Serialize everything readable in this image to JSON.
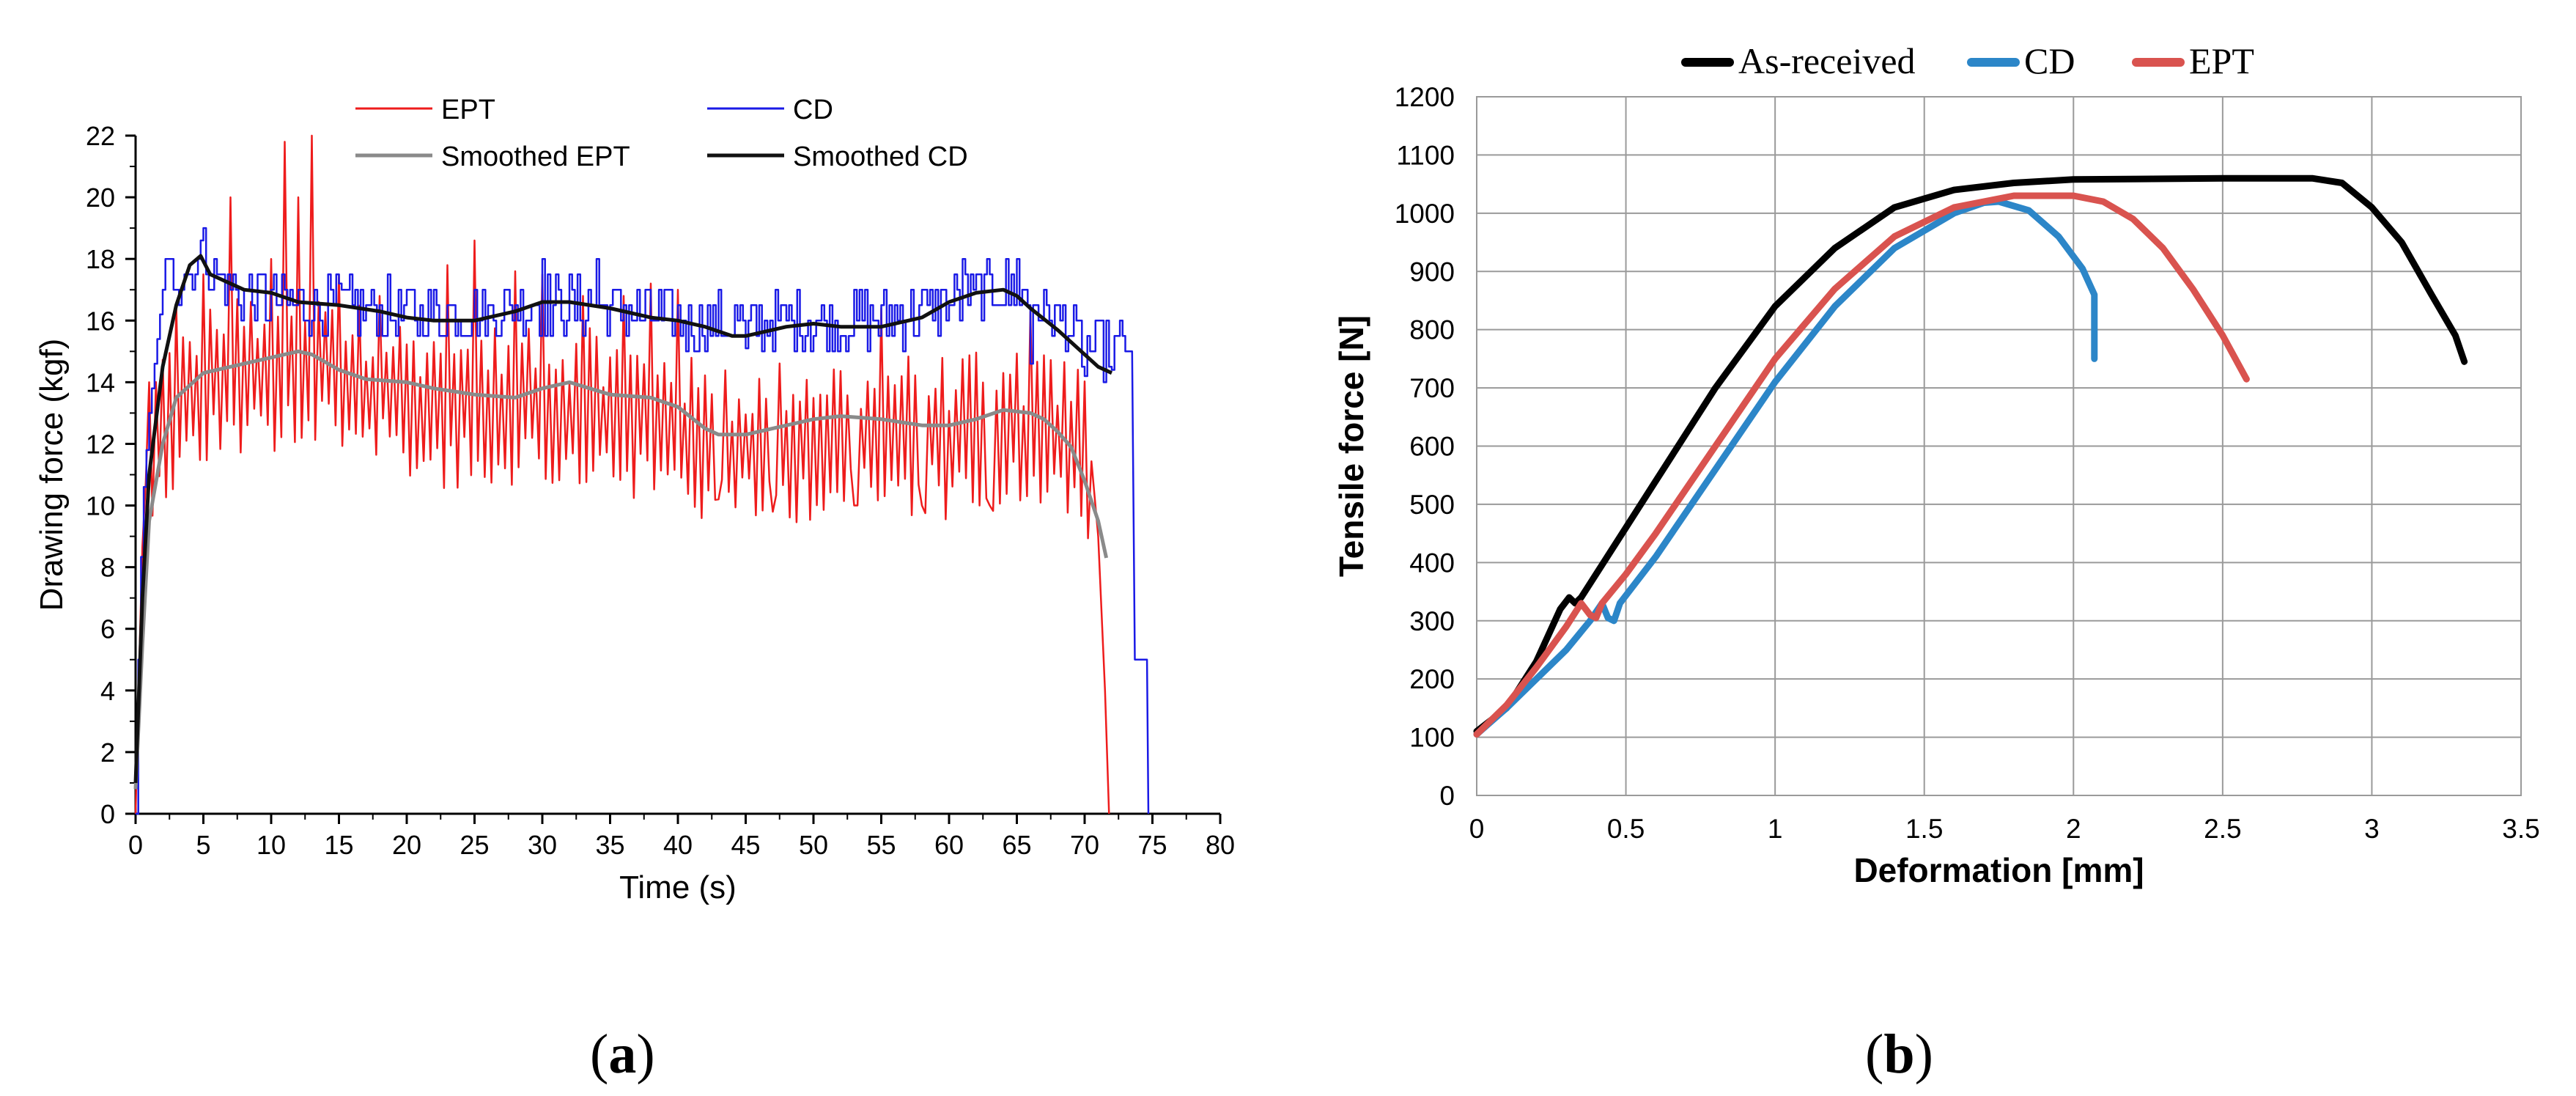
{
  "panels": {
    "a_label": "a",
    "b_label": "b",
    "open_paren": "(",
    "close_paren": ")"
  },
  "chart_data": [
    {
      "type": "line",
      "panel": "a",
      "title": "",
      "xlabel": "Time (s)",
      "ylabel": "Drawing force (kgf)",
      "xlim": [
        0,
        80
      ],
      "ylim": [
        0,
        22
      ],
      "xticks": [
        0,
        5,
        10,
        15,
        20,
        25,
        30,
        35,
        40,
        45,
        50,
        55,
        60,
        65,
        70,
        75,
        80
      ],
      "yticks": [
        0,
        2,
        4,
        6,
        8,
        10,
        12,
        14,
        16,
        18,
        20,
        22
      ],
      "grid": false,
      "legend_position": "top",
      "legend_order": [
        "EPT",
        "CD",
        "Smoothed EPT",
        "Smoothed CD"
      ],
      "series": [
        {
          "name": "EPT",
          "color": "#ee1c1c",
          "kind": "noisy",
          "base": [
            [
              0.1,
              0
            ],
            [
              0.3,
              6
            ],
            [
              0.6,
              10
            ],
            [
              1,
              12
            ],
            [
              3,
              13.3
            ],
            [
              5,
              14.3
            ],
            [
              10,
              14.8
            ],
            [
              13,
              15
            ],
            [
              15,
              14.5
            ],
            [
              20,
              13.8
            ],
            [
              25,
              13.4
            ],
            [
              30,
              13.6
            ],
            [
              35,
              13.4
            ],
            [
              40,
              12.8
            ],
            [
              42,
              12.3
            ],
            [
              45,
              12.3
            ],
            [
              50,
              12.6
            ],
            [
              55,
              12.7
            ],
            [
              60,
              12.6
            ],
            [
              65,
              12.8
            ],
            [
              68,
              12.6
            ],
            [
              70,
              12.3
            ],
            [
              71,
              9
            ],
            [
              71.5,
              4
            ],
            [
              71.8,
              0
            ]
          ],
          "amplitude": 2.7,
          "spikes": [
            [
              1,
              14
            ],
            [
              3,
              16.5
            ],
            [
              5,
              17.5
            ],
            [
              7,
              20
            ],
            [
              10,
              18
            ],
            [
              11,
              21.8
            ],
            [
              12,
              20
            ],
            [
              13,
              22
            ],
            [
              15,
              17.5
            ],
            [
              18,
              16.8
            ],
            [
              23,
              17.8
            ],
            [
              25,
              18.6
            ],
            [
              28,
              17.6
            ],
            [
              30,
              17.5
            ],
            [
              33,
              16.8
            ],
            [
              36,
              16.8
            ],
            [
              38,
              17.2
            ],
            [
              40,
              17
            ],
            [
              55,
              16.4
            ],
            [
              66,
              16.3
            ]
          ],
          "dips": [
            [
              13,
              10.2
            ],
            [
              18,
              10
            ],
            [
              25,
              9.4
            ],
            [
              30,
              9.6
            ],
            [
              38,
              10
            ],
            [
              43,
              10.2
            ],
            [
              47,
              9.8
            ],
            [
              53,
              10
            ],
            [
              58,
              10
            ],
            [
              63,
              10
            ]
          ]
        },
        {
          "name": "CD",
          "color": "#1a1ae6",
          "kind": "step",
          "base": [
            [
              0,
              0
            ],
            [
              0.2,
              5
            ],
            [
              0.5,
              10
            ],
            [
              1,
              13
            ],
            [
              1.5,
              15
            ],
            [
              2,
              17
            ],
            [
              3,
              17.5
            ],
            [
              5,
              18
            ],
            [
              7,
              17
            ],
            [
              10,
              16.6
            ],
            [
              15,
              16.5
            ],
            [
              20,
              16.2
            ],
            [
              25,
              16.2
            ],
            [
              30,
              16.6
            ],
            [
              35,
              16.4
            ],
            [
              40,
              16
            ],
            [
              45,
              15.8
            ],
            [
              50,
              16
            ],
            [
              55,
              16
            ],
            [
              60,
              16.6
            ],
            [
              63,
              17
            ],
            [
              65,
              17
            ],
            [
              68,
              16
            ],
            [
              70,
              15.2
            ],
            [
              72,
              15
            ],
            [
              73,
              15.4
            ],
            [
              73.5,
              15
            ],
            [
              73.7,
              5
            ],
            [
              74.6,
              5
            ],
            [
              74.7,
              0
            ]
          ],
          "amplitude": 1.0,
          "spikes": [
            [
              4.8,
              18.6
            ],
            [
              15,
              17.2
            ],
            [
              30,
              18
            ],
            [
              34,
              18
            ],
            [
              61,
              18
            ],
            [
              65,
              18
            ]
          ],
          "dips": [
            [
              45,
              15.1
            ],
            [
              66,
              14.6
            ],
            [
              70,
              14.2
            ],
            [
              72,
              14.4
            ]
          ]
        },
        {
          "name": "Smoothed EPT",
          "color": "#8a8a8a",
          "kind": "smooth",
          "points": [
            [
              0,
              0.8
            ],
            [
              0.5,
              5.5
            ],
            [
              1,
              9.5
            ],
            [
              2,
              12
            ],
            [
              3,
              13.5
            ],
            [
              5,
              14.3
            ],
            [
              8,
              14.6
            ],
            [
              10,
              14.8
            ],
            [
              12,
              15
            ],
            [
              13,
              14.9
            ],
            [
              15,
              14.4
            ],
            [
              17,
              14.1
            ],
            [
              20,
              14
            ],
            [
              22,
              13.8
            ],
            [
              25,
              13.6
            ],
            [
              28,
              13.5
            ],
            [
              30,
              13.8
            ],
            [
              32,
              14
            ],
            [
              35,
              13.6
            ],
            [
              38,
              13.5
            ],
            [
              40,
              13.2
            ],
            [
              42,
              12.5
            ],
            [
              43,
              12.3
            ],
            [
              45,
              12.3
            ],
            [
              48,
              12.6
            ],
            [
              50,
              12.8
            ],
            [
              52,
              12.9
            ],
            [
              55,
              12.8
            ],
            [
              58,
              12.6
            ],
            [
              60,
              12.6
            ],
            [
              62,
              12.8
            ],
            [
              64,
              13.1
            ],
            [
              66,
              13
            ],
            [
              67,
              12.8
            ],
            [
              68,
              12.4
            ],
            [
              69,
              11.9
            ],
            [
              70,
              10.8
            ],
            [
              71,
              9.5
            ],
            [
              71.6,
              8.3
            ]
          ]
        },
        {
          "name": "Smoothed CD",
          "color": "#111111",
          "kind": "smooth",
          "points": [
            [
              0,
              1
            ],
            [
              0.5,
              7
            ],
            [
              1,
              11
            ],
            [
              2,
              14.5
            ],
            [
              3,
              16.5
            ],
            [
              4,
              17.8
            ],
            [
              4.8,
              18.1
            ],
            [
              5.5,
              17.5
            ],
            [
              7,
              17.2
            ],
            [
              8,
              17
            ],
            [
              10,
              16.9
            ],
            [
              12,
              16.6
            ],
            [
              15,
              16.5
            ],
            [
              18,
              16.3
            ],
            [
              20,
              16.1
            ],
            [
              22,
              16
            ],
            [
              25,
              16
            ],
            [
              28,
              16.3
            ],
            [
              30,
              16.6
            ],
            [
              32,
              16.6
            ],
            [
              35,
              16.4
            ],
            [
              38,
              16.1
            ],
            [
              40,
              16
            ],
            [
              42,
              15.8
            ],
            [
              44,
              15.5
            ],
            [
              45,
              15.5
            ],
            [
              48,
              15.8
            ],
            [
              50,
              15.9
            ],
            [
              52,
              15.8
            ],
            [
              55,
              15.8
            ],
            [
              58,
              16.1
            ],
            [
              60,
              16.6
            ],
            [
              62,
              16.9
            ],
            [
              64,
              17
            ],
            [
              65,
              16.8
            ],
            [
              66,
              16.4
            ],
            [
              68,
              15.7
            ],
            [
              70,
              14.9
            ],
            [
              71,
              14.5
            ],
            [
              72,
              14.3
            ]
          ]
        }
      ]
    },
    {
      "type": "line",
      "panel": "b",
      "title": "",
      "xlabel": "Deformation [mm]",
      "ylabel": "Tensile force [N]",
      "xlim": [
        0,
        3.5
      ],
      "ylim": [
        0,
        1200
      ],
      "xticks": [
        0,
        0.5,
        1,
        1.5,
        2,
        2.5,
        3,
        3.5
      ],
      "yticks": [
        0,
        100,
        200,
        300,
        400,
        500,
        600,
        700,
        800,
        900,
        1000,
        1100,
        1200
      ],
      "grid": true,
      "legend_position": "top",
      "series": [
        {
          "name": "As-received",
          "color": "#000000",
          "points": [
            [
              0,
              110
            ],
            [
              0.1,
              150
            ],
            [
              0.2,
              230
            ],
            [
              0.28,
              320
            ],
            [
              0.31,
              340
            ],
            [
              0.33,
              330
            ],
            [
              0.35,
              340
            ],
            [
              0.4,
              380
            ],
            [
              0.5,
              460
            ],
            [
              0.6,
              540
            ],
            [
              0.8,
              700
            ],
            [
              1,
              840
            ],
            [
              1.2,
              940
            ],
            [
              1.4,
              1010
            ],
            [
              1.6,
              1040
            ],
            [
              1.8,
              1052
            ],
            [
              2,
              1058
            ],
            [
              2.5,
              1060
            ],
            [
              2.8,
              1060
            ],
            [
              2.9,
              1052
            ],
            [
              3,
              1010
            ],
            [
              3.1,
              950
            ],
            [
              3.2,
              860
            ],
            [
              3.28,
              790
            ],
            [
              3.31,
              745
            ]
          ]
        },
        {
          "name": "CD",
          "color": "#2c86c8",
          "points": [
            [
              0,
              105
            ],
            [
              0.1,
              150
            ],
            [
              0.2,
              200
            ],
            [
              0.3,
              250
            ],
            [
              0.38,
              300
            ],
            [
              0.42,
              330
            ],
            [
              0.44,
              305
            ],
            [
              0.46,
              300
            ],
            [
              0.48,
              330
            ],
            [
              0.6,
              410
            ],
            [
              0.8,
              560
            ],
            [
              1,
              710
            ],
            [
              1.2,
              840
            ],
            [
              1.4,
              940
            ],
            [
              1.6,
              1000
            ],
            [
              1.7,
              1018
            ],
            [
              1.75,
              1020
            ],
            [
              1.85,
              1005
            ],
            [
              1.95,
              960
            ],
            [
              2.03,
              905
            ],
            [
              2.07,
              860
            ],
            [
              2.07,
              750
            ]
          ]
        },
        {
          "name": "EPT",
          "color": "#d9534f",
          "points": [
            [
              0,
              105
            ],
            [
              0.1,
              155
            ],
            [
              0.2,
              220
            ],
            [
              0.3,
              290
            ],
            [
              0.35,
              330
            ],
            [
              0.38,
              310
            ],
            [
              0.4,
              305
            ],
            [
              0.42,
              330
            ],
            [
              0.5,
              380
            ],
            [
              0.6,
              450
            ],
            [
              0.8,
              600
            ],
            [
              1,
              750
            ],
            [
              1.2,
              870
            ],
            [
              1.4,
              960
            ],
            [
              1.6,
              1010
            ],
            [
              1.8,
              1030
            ],
            [
              2,
              1030
            ],
            [
              2.1,
              1020
            ],
            [
              2.2,
              990
            ],
            [
              2.3,
              940
            ],
            [
              2.4,
              870
            ],
            [
              2.5,
              790
            ],
            [
              2.58,
              715
            ]
          ]
        }
      ]
    }
  ]
}
